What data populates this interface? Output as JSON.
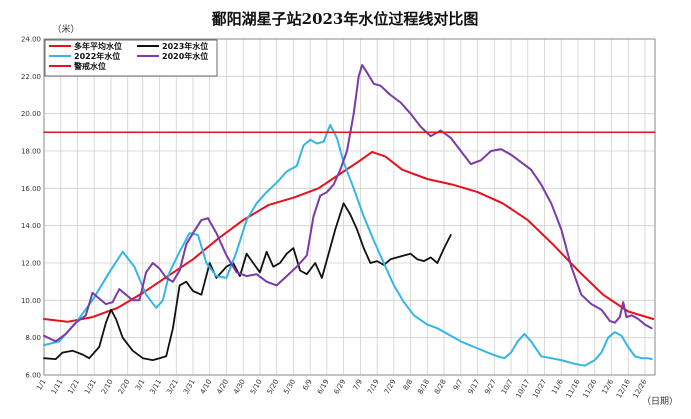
{
  "chart_data": {
    "type": "line",
    "title": "鄱阳湖星子站2023年水位过程线对比图",
    "ylabel": "（米）",
    "xlabel": "（日期）",
    "ylim": [
      6.0,
      24.0
    ],
    "yticks": [
      "6.00",
      "8.00",
      "10.00",
      "12.00",
      "14.00",
      "16.00",
      "18.00",
      "20.00",
      "22.00",
      "24.00"
    ],
    "x_tick_labels": [
      "1/1",
      "1/11",
      "1/21",
      "1/31",
      "2/10",
      "2/20",
      "3/1",
      "3/11",
      "3/21",
      "3/31",
      "4/10",
      "4/20",
      "4/30",
      "5/10",
      "5/20",
      "5/30",
      "6/9",
      "6/19",
      "6/29",
      "7/9",
      "7/19",
      "7/29",
      "8/8",
      "8/18",
      "8/28",
      "9/7",
      "9/17",
      "9/27",
      "10/7",
      "10/17",
      "10/27",
      "11/6",
      "11/16",
      "11/26",
      "12/6",
      "12/16",
      "12/26"
    ],
    "x_tick_days": [
      1,
      11,
      21,
      31,
      41,
      51,
      60,
      70,
      80,
      90,
      100,
      110,
      120,
      130,
      140,
      150,
      160,
      170,
      180,
      190,
      200,
      210,
      220,
      230,
      240,
      250,
      260,
      270,
      280,
      290,
      300,
      310,
      320,
      330,
      340,
      350,
      360
    ],
    "x_range": [
      1,
      366
    ],
    "grid": true,
    "legend_position": "top-left",
    "series": [
      {
        "name": "多年平均水位",
        "color": "#e8101a",
        "width": 2,
        "points": [
          [
            1,
            9.0
          ],
          [
            15,
            8.85
          ],
          [
            30,
            9.1
          ],
          [
            45,
            9.6
          ],
          [
            60,
            10.4
          ],
          [
            75,
            11.3
          ],
          [
            90,
            12.2
          ],
          [
            105,
            13.3
          ],
          [
            120,
            14.3
          ],
          [
            135,
            15.1
          ],
          [
            150,
            15.5
          ],
          [
            165,
            16.0
          ],
          [
            180,
            16.9
          ],
          [
            190,
            17.5
          ],
          [
            197,
            17.95
          ],
          [
            205,
            17.7
          ],
          [
            215,
            17.0
          ],
          [
            230,
            16.5
          ],
          [
            245,
            16.2
          ],
          [
            260,
            15.8
          ],
          [
            275,
            15.2
          ],
          [
            290,
            14.3
          ],
          [
            305,
            13.0
          ],
          [
            320,
            11.6
          ],
          [
            335,
            10.3
          ],
          [
            350,
            9.4
          ],
          [
            365,
            9.0
          ]
        ]
      },
      {
        "name": "2023年水位",
        "color": "#111111",
        "width": 1.8,
        "points": [
          [
            1,
            6.9
          ],
          [
            8,
            6.85
          ],
          [
            12,
            7.2
          ],
          [
            18,
            7.3
          ],
          [
            24,
            7.1
          ],
          [
            28,
            6.9
          ],
          [
            34,
            7.5
          ],
          [
            38,
            8.8
          ],
          [
            41,
            9.5
          ],
          [
            44,
            9.0
          ],
          [
            48,
            8.0
          ],
          [
            54,
            7.3
          ],
          [
            60,
            6.9
          ],
          [
            66,
            6.8
          ],
          [
            70,
            6.9
          ],
          [
            74,
            7.0
          ],
          [
            78,
            8.5
          ],
          [
            82,
            10.8
          ],
          [
            86,
            11.0
          ],
          [
            90,
            10.5
          ],
          [
            95,
            10.3
          ],
          [
            100,
            12.0
          ],
          [
            104,
            11.2
          ],
          [
            110,
            11.8
          ],
          [
            114,
            12.0
          ],
          [
            118,
            11.3
          ],
          [
            122,
            12.5
          ],
          [
            126,
            12.0
          ],
          [
            130,
            11.5
          ],
          [
            134,
            12.6
          ],
          [
            138,
            11.8
          ],
          [
            142,
            12.0
          ],
          [
            146,
            12.5
          ],
          [
            150,
            12.8
          ],
          [
            154,
            11.6
          ],
          [
            158,
            11.4
          ],
          [
            163,
            12.0
          ],
          [
            167,
            11.2
          ],
          [
            171,
            12.5
          ],
          [
            175,
            13.8
          ],
          [
            180,
            15.2
          ],
          [
            184,
            14.6
          ],
          [
            188,
            13.8
          ],
          [
            192,
            12.8
          ],
          [
            196,
            12.0
          ],
          [
            200,
            12.1
          ],
          [
            204,
            11.9
          ],
          [
            208,
            12.2
          ],
          [
            212,
            12.3
          ],
          [
            216,
            12.4
          ],
          [
            220,
            12.5
          ],
          [
            224,
            12.2
          ],
          [
            228,
            12.1
          ],
          [
            232,
            12.3
          ],
          [
            236,
            12.0
          ],
          [
            240,
            12.8
          ],
          [
            244,
            13.5
          ]
        ]
      },
      {
        "name": "2022年水位",
        "color": "#35b5e5",
        "width": 2,
        "points": [
          [
            1,
            7.6
          ],
          [
            10,
            7.8
          ],
          [
            20,
            8.8
          ],
          [
            30,
            10.0
          ],
          [
            40,
            11.5
          ],
          [
            48,
            12.6
          ],
          [
            55,
            11.8
          ],
          [
            62,
            10.3
          ],
          [
            68,
            9.6
          ],
          [
            72,
            10.0
          ],
          [
            76,
            11.5
          ],
          [
            82,
            12.6
          ],
          [
            88,
            13.6
          ],
          [
            93,
            13.5
          ],
          [
            98,
            12.0
          ],
          [
            104,
            11.3
          ],
          [
            110,
            11.2
          ],
          [
            116,
            12.6
          ],
          [
            122,
            14.3
          ],
          [
            128,
            15.2
          ],
          [
            134,
            15.8
          ],
          [
            140,
            16.3
          ],
          [
            146,
            16.9
          ],
          [
            152,
            17.2
          ],
          [
            156,
            18.3
          ],
          [
            160,
            18.6
          ],
          [
            164,
            18.4
          ],
          [
            168,
            18.5
          ],
          [
            172,
            19.4
          ],
          [
            176,
            18.7
          ],
          [
            180,
            17.4
          ],
          [
            186,
            16.0
          ],
          [
            192,
            14.5
          ],
          [
            198,
            13.2
          ],
          [
            204,
            12.0
          ],
          [
            210,
            10.8
          ],
          [
            216,
            9.9
          ],
          [
            222,
            9.2
          ],
          [
            230,
            8.7
          ],
          [
            236,
            8.5
          ],
          [
            242,
            8.2
          ],
          [
            250,
            7.8
          ],
          [
            258,
            7.5
          ],
          [
            266,
            7.2
          ],
          [
            272,
            7.0
          ],
          [
            276,
            6.9
          ],
          [
            280,
            7.2
          ],
          [
            284,
            7.8
          ],
          [
            288,
            8.2
          ],
          [
            292,
            7.8
          ],
          [
            298,
            7.0
          ],
          [
            304,
            6.9
          ],
          [
            310,
            6.8
          ],
          [
            318,
            6.6
          ],
          [
            324,
            6.5
          ],
          [
            330,
            6.8
          ],
          [
            334,
            7.2
          ],
          [
            338,
            8.0
          ],
          [
            342,
            8.3
          ],
          [
            346,
            8.1
          ],
          [
            350,
            7.5
          ],
          [
            354,
            7.0
          ],
          [
            358,
            6.9
          ],
          [
            362,
            6.9
          ],
          [
            364,
            6.85
          ]
        ]
      },
      {
        "name": "2020年水位",
        "color": "#7a3aa8",
        "width": 2,
        "points": [
          [
            1,
            8.1
          ],
          [
            8,
            7.8
          ],
          [
            14,
            8.2
          ],
          [
            20,
            8.8
          ],
          [
            26,
            9.2
          ],
          [
            30,
            10.4
          ],
          [
            34,
            10.1
          ],
          [
            38,
            9.8
          ],
          [
            42,
            9.9
          ],
          [
            46,
            10.6
          ],
          [
            50,
            10.3
          ],
          [
            54,
            10.0
          ],
          [
            58,
            10.0
          ],
          [
            62,
            11.5
          ],
          [
            66,
            12.0
          ],
          [
            70,
            11.7
          ],
          [
            74,
            11.2
          ],
          [
            78,
            11.0
          ],
          [
            82,
            11.6
          ],
          [
            86,
            13.0
          ],
          [
            90,
            13.6
          ],
          [
            95,
            14.3
          ],
          [
            99,
            14.4
          ],
          [
            104,
            13.6
          ],
          [
            110,
            12.4
          ],
          [
            116,
            11.5
          ],
          [
            122,
            11.3
          ],
          [
            128,
            11.4
          ],
          [
            134,
            11.0
          ],
          [
            140,
            10.8
          ],
          [
            146,
            11.3
          ],
          [
            152,
            11.8
          ],
          [
            158,
            12.4
          ],
          [
            162,
            14.5
          ],
          [
            166,
            15.6
          ],
          [
            170,
            15.8
          ],
          [
            174,
            16.2
          ],
          [
            178,
            17.0
          ],
          [
            182,
            18.0
          ],
          [
            186,
            20.0
          ],
          [
            189,
            22.0
          ],
          [
            191,
            22.6
          ],
          [
            194,
            22.2
          ],
          [
            198,
            21.6
          ],
          [
            202,
            21.5
          ],
          [
            208,
            21.0
          ],
          [
            214,
            20.6
          ],
          [
            220,
            20.0
          ],
          [
            226,
            19.3
          ],
          [
            232,
            18.8
          ],
          [
            238,
            19.1
          ],
          [
            244,
            18.7
          ],
          [
            250,
            18.0
          ],
          [
            256,
            17.3
          ],
          [
            262,
            17.5
          ],
          [
            268,
            18.0
          ],
          [
            274,
            18.1
          ],
          [
            280,
            17.8
          ],
          [
            286,
            17.4
          ],
          [
            292,
            17.0
          ],
          [
            298,
            16.2
          ],
          [
            304,
            15.2
          ],
          [
            310,
            13.8
          ],
          [
            316,
            11.8
          ],
          [
            322,
            10.3
          ],
          [
            328,
            9.8
          ],
          [
            334,
            9.5
          ],
          [
            339,
            8.9
          ],
          [
            342,
            8.8
          ],
          [
            345,
            9.1
          ],
          [
            347,
            9.9
          ],
          [
            349,
            9.1
          ],
          [
            352,
            9.2
          ],
          [
            356,
            9.0
          ],
          [
            360,
            8.7
          ],
          [
            364,
            8.5
          ]
        ]
      },
      {
        "name": "警戒水位",
        "color": "#e8101a",
        "width": 1.5,
        "points": [
          [
            1,
            19.0
          ],
          [
            366,
            19.0
          ]
        ]
      }
    ],
    "legend": [
      {
        "label": "多年平均水位",
        "color": "#e8101a"
      },
      {
        "label": "2023年水位",
        "color": "#111111"
      },
      {
        "label": "2022年水位",
        "color": "#35b5e5"
      },
      {
        "label": "2020年水位",
        "color": "#7a3aa8"
      },
      {
        "label": "警戒水位",
        "color": "#e8101a"
      }
    ]
  }
}
